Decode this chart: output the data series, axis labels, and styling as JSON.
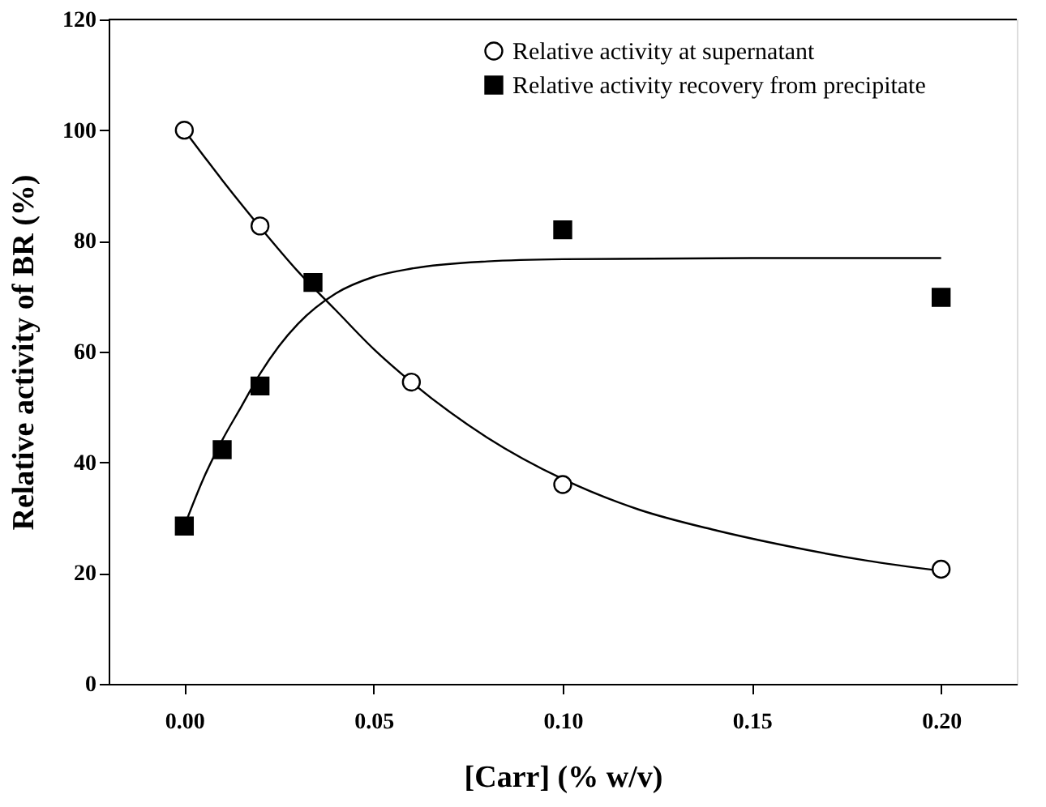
{
  "chart_data": {
    "type": "scatter",
    "xlabel": "[Carr] (% w/v)",
    "ylabel": "Relative activity of BR (%)",
    "xlim": [
      -0.02,
      0.22
    ],
    "xticks": [
      {
        "value": 0,
        "label": "0.00"
      },
      {
        "value": 0.05,
        "label": "0.05"
      },
      {
        "value": 0.1,
        "label": "0.10"
      },
      {
        "value": 0.15,
        "label": "0.15"
      },
      {
        "value": 0.2,
        "label": "0.20"
      }
    ],
    "ylim": [
      0,
      120
    ],
    "yticks": [
      0,
      20,
      40,
      60,
      80,
      100,
      120
    ],
    "grid": false,
    "legend": "top right",
    "series": [
      {
        "name": "Relative activity at supernatant",
        "color": "#000000",
        "marker": "circle",
        "x": [
          0,
          0.02,
          0.06,
          0.1,
          0.2
        ],
        "values": [
          100,
          82.7,
          54.5,
          36,
          20.7
        ]
      },
      {
        "name": "Relative activity recovery from precipitate",
        "color": "#000000",
        "marker": "square",
        "x": [
          0,
          0.01,
          0.02,
          0.034,
          0.1,
          0.2
        ],
        "values": [
          28.5,
          42.3,
          53.8,
          72.5,
          82,
          69.8
        ]
      },
      {
        "type": "line",
        "color": "#000000",
        "line_style": "solid",
        "x": [
          0,
          0.01,
          0.02,
          0.03,
          0.04,
          0.05,
          0.06,
          0.08,
          0.1,
          0.12,
          0.14,
          0.16,
          0.18,
          0.2
        ],
        "values": [
          100,
          91,
          82.5,
          74.5,
          67.5,
          60.5,
          54.5,
          44.5,
          37,
          31.5,
          27.8,
          24.8,
          22.3,
          20.4
        ]
      },
      {
        "type": "line",
        "color": "#000000",
        "line_style": "solid",
        "x": [
          0,
          0.005,
          0.01,
          0.015,
          0.02,
          0.025,
          0.03,
          0.04,
          0.05,
          0.06,
          0.08,
          0.1,
          0.15,
          0.2
        ],
        "values": [
          28.5,
          37,
          44,
          50,
          56,
          61,
          65,
          70.5,
          73.5,
          75,
          76.3,
          76.7,
          76.9,
          76.9
        ]
      }
    ]
  }
}
